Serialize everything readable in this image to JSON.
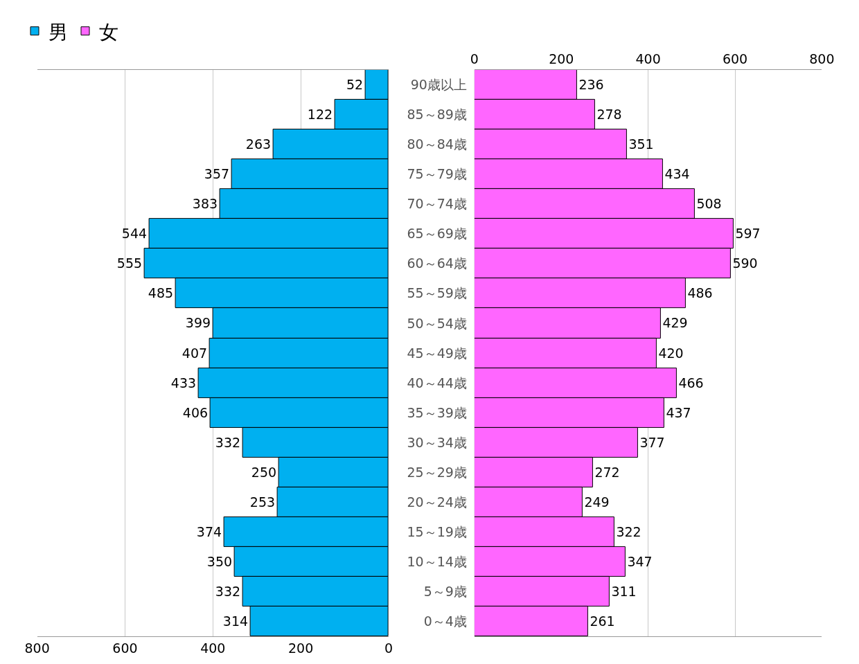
{
  "chart_data": [
    {
      "type": "bar",
      "orientation": "horizontal",
      "categories": [
        "90歳以上",
        "85～89歳",
        "80～84歳",
        "75～79歳",
        "70～74歳",
        "65～69歳",
        "60～64歳",
        "55～59歳",
        "50～54歳",
        "45～49歳",
        "40～44歳",
        "35～39歳",
        "30～34歳",
        "25～29歳",
        "20～24歳",
        "15～19歳",
        "10～14歳",
        "5～9歳",
        "0～4歳"
      ],
      "series": [
        {
          "name": "男",
          "color": "#00b0f0",
          "values": [
            52,
            122,
            263,
            357,
            383,
            544,
            555,
            485,
            399,
            407,
            433,
            406,
            332,
            250,
            253,
            374,
            350,
            332,
            314
          ]
        }
      ],
      "xlim": [
        800,
        0
      ],
      "xticks": [
        800,
        600,
        400,
        200,
        0
      ],
      "grid": "x",
      "data_labels": true,
      "tick_labels": "x",
      "legend": "top left"
    },
    {
      "type": "bar",
      "orientation": "horizontal",
      "categories": [
        "90歳以上",
        "85～89歳",
        "80～84歳",
        "75～79歳",
        "70～74歳",
        "65～69歳",
        "60～64歳",
        "55～59歳",
        "50～54歳",
        "45～49歳",
        "40～44歳",
        "35～39歳",
        "30～34歳",
        "25～29歳",
        "20～24歳",
        "15～19歳",
        "10～14歳",
        "5～9歳",
        "0～4歳"
      ],
      "series": [
        {
          "name": "女",
          "color": "#ff66ff",
          "values": [
            236,
            278,
            351,
            434,
            508,
            597,
            590,
            486,
            429,
            420,
            466,
            437,
            377,
            272,
            249,
            322,
            347,
            311,
            261
          ]
        }
      ],
      "xlim": [
        0,
        800
      ],
      "xticks": [
        0,
        200,
        400,
        600,
        800
      ],
      "grid": "x",
      "data_labels": true,
      "legend": "top left"
    }
  ]
}
